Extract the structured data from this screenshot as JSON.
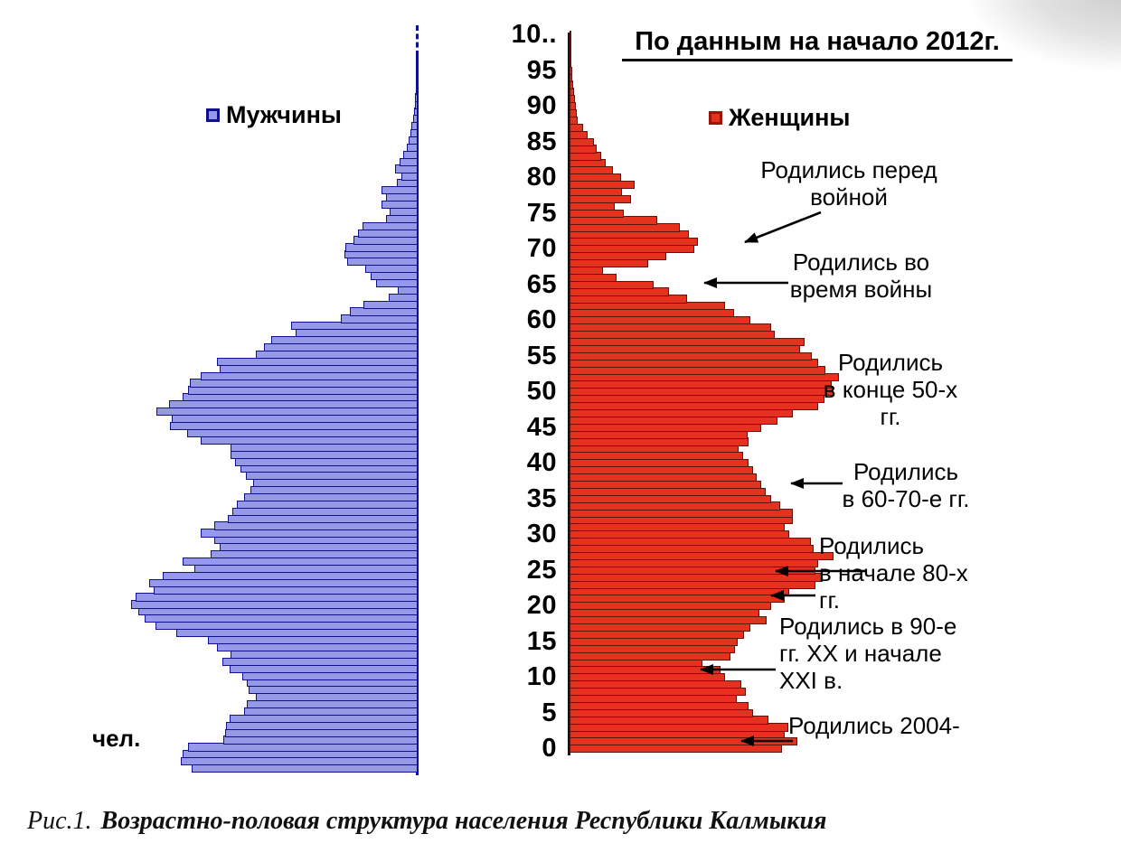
{
  "title": "По данным на начало 2012г.",
  "legend": {
    "male_label": "Мужчины",
    "female_label": "Женщины"
  },
  "unit_label": "чел.",
  "caption": {
    "prefix": "Рис.1.",
    "text": "Возрастно-половая структура населения Республики Калмыкия"
  },
  "annotations": [
    {
      "id": "born-before-war",
      "text": "Родились перед\nвойной"
    },
    {
      "id": "born-during-war",
      "text": "Родились во\nвремя войны"
    },
    {
      "id": "born-late-50s",
      "text": "Родились\nв конце 50-х\nгг."
    },
    {
      "id": "born-60-70s",
      "text": "Родились\nв 60-70-е гг."
    },
    {
      "id": "born-early-80s",
      "text": "Родились\nв начале 80-х\nгг."
    },
    {
      "id": "born-90s-2000s",
      "text": "Родились в 90-е\nгг. XX и начале\nXXI в."
    },
    {
      "id": "born-2004",
      "text": "Родились 2004-"
    }
  ],
  "colors": {
    "male_fill": "#9699e8",
    "male_border": "#10108c",
    "female_fill": "#e5321f",
    "female_border": "#5f130c",
    "axis_male": "#12128e",
    "axis_female": "#141414"
  },
  "chart_data": {
    "type": "bar",
    "subtype": "population-pyramid",
    "title": "По данным на начало 2012г.",
    "age_min": 0,
    "age_max": 100,
    "age_tick_labels": [
      "10..",
      "95",
      "90",
      "85",
      "80",
      "75",
      "70",
      "65",
      "60",
      "55",
      "50",
      "45",
      "40",
      "35",
      "30",
      "25",
      "20",
      "15",
      "10",
      "5",
      "0"
    ],
    "x_unit": "чел.",
    "x_tick_labels_visible": false,
    "values_unit": "relative bar length (no numeric scale shown in figure)",
    "series": [
      {
        "name": "Мужчины",
        "side": "left",
        "values": [
          250,
          262,
          260,
          254,
          215,
          213,
          212,
          208,
          192,
          189,
          179,
          187,
          189,
          194,
          208,
          216,
          207,
          222,
          232,
          267,
          290,
          302,
          309,
          317,
          312,
          292,
          297,
          282,
          247,
          260,
          229,
          219,
          225,
          240,
          225,
          210,
          205,
          200,
          192,
          185,
          182,
          190,
          196,
          202,
          207,
          207,
          240,
          255,
          274,
          272,
          289,
          275,
          260,
          254,
          252,
          240,
          219,
          222,
          179,
          170,
          162,
          135,
          140,
          85,
          75,
          60,
          32,
          22,
          46,
          52,
          58,
          78,
          81,
          80,
          71,
          66,
          61,
          35,
          31,
          40,
          35,
          40,
          23,
          18,
          25,
          20,
          16,
          12,
          10,
          8,
          7,
          5,
          4,
          3,
          3,
          2,
          2,
          1,
          1,
          1,
          1
        ]
      },
      {
        "name": "Женщины",
        "side": "right",
        "values": [
          235,
          252,
          238,
          242,
          220,
          203,
          198,
          185,
          195,
          190,
          172,
          167,
          147,
          178,
          183,
          186,
          193,
          200,
          218,
          210,
          223,
          238,
          243,
          272,
          280,
          272,
          275,
          292,
          270,
          267,
          243,
          238,
          247,
          247,
          233,
          223,
          217,
          212,
          207,
          203,
          198,
          192,
          187,
          198,
          197,
          212,
          230,
          247,
          275,
          282,
          292,
          290,
          298,
          283,
          275,
          268,
          255,
          260,
          227,
          223,
          200,
          182,
          172,
          130,
          110,
          93,
          52,
          37,
          87,
          107,
          138,
          142,
          132,
          122,
          97,
          60,
          50,
          68,
          58,
          72,
          57,
          48,
          40,
          35,
          30,
          27,
          20,
          15,
          9,
          8,
          7,
          6,
          5,
          4,
          3,
          3,
          2,
          2,
          1,
          1,
          1
        ]
      }
    ]
  }
}
